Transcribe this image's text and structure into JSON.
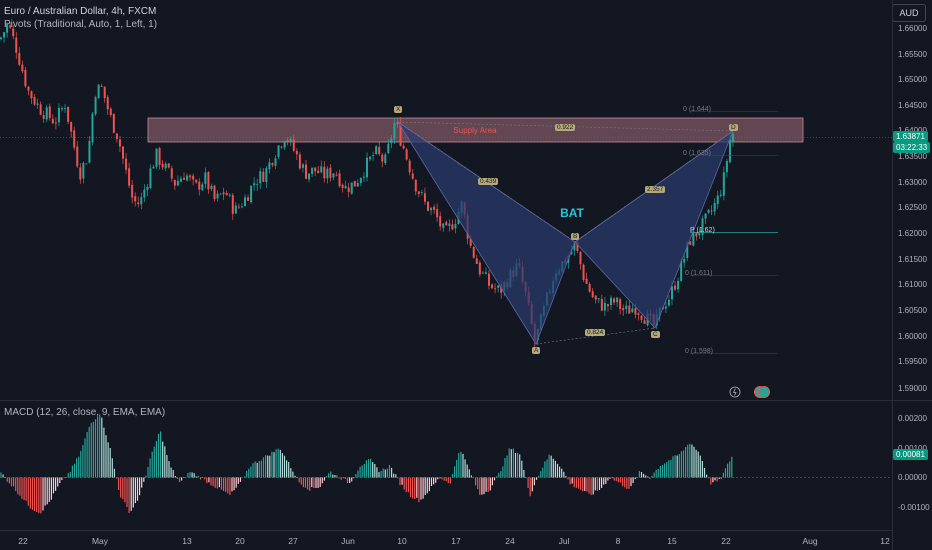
{
  "header": {
    "title": "Euro / Australian Dollar, 4h, FXCM",
    "indicator": "Pivots (Traditional, Auto, 1, Left, 1)",
    "currency_button": "AUD",
    "macd_title": "MACD (12, 26, close, 9, EMA, EMA)"
  },
  "price_axis": {
    "labels": [
      "1.66000",
      "1.65500",
      "1.65000",
      "1.64500",
      "1.64000",
      "1.63500",
      "1.63000",
      "1.62500",
      "1.62000",
      "1.61500",
      "1.61000",
      "1.60500",
      "1.60000",
      "1.59500",
      "1.59000"
    ],
    "current_price": "1.63871",
    "countdown": "03:22:33"
  },
  "macd_axis": {
    "labels": [
      "0.00200",
      "0.00100",
      "0.00000",
      "-0.00100"
    ],
    "current_value": "0.00081"
  },
  "time_axis": {
    "labels": [
      "22",
      "May",
      "13",
      "20",
      "27",
      "Jun",
      "10",
      "17",
      "24",
      "Jul",
      "8",
      "15",
      "22",
      "Aug",
      "12"
    ]
  },
  "pattern": {
    "name": "BAT",
    "zone_label": "Supply Area",
    "points": [
      {
        "label": "X",
        "price": 1.642
      },
      {
        "label": "A",
        "price": 1.599
      },
      {
        "label": "B",
        "price": 1.618
      },
      {
        "label": "C",
        "price": 1.602
      },
      {
        "label": "D",
        "price": 1.6397
      }
    ],
    "ratios": [
      "0.439",
      "2.357",
      "0.824",
      "0.922"
    ],
    "fib_levels": [
      "0 (1.644)",
      "P (1.62)",
      "0 (1.611)",
      "0 (1.598)",
      "0 (1.635)"
    ]
  },
  "colors": {
    "background": "#131722",
    "up": "#26a69a",
    "down": "#ef5350",
    "zone": "#a4707a",
    "pattern_fill": "#2a3a6e",
    "bat_text": "#26c6da"
  },
  "chart_data": {
    "type": "candlestick",
    "symbol": "EURAUD",
    "timeframe": "4h",
    "ylim": [
      1.5875,
      1.6625
    ],
    "supply_zone": [
      1.638,
      1.6425
    ],
    "path_points": [
      [
        0,
        1.658
      ],
      [
        8,
        1.661
      ],
      [
        16,
        1.6565
      ],
      [
        28,
        1.648
      ],
      [
        40,
        1.6445
      ],
      [
        55,
        1.642
      ],
      [
        65,
        1.6455
      ],
      [
        72,
        1.639
      ],
      [
        80,
        1.632
      ],
      [
        88,
        1.6355
      ],
      [
        95,
        1.648
      ],
      [
        102,
        1.6485
      ],
      [
        110,
        1.643
      ],
      [
        118,
        1.639
      ],
      [
        125,
        1.633
      ],
      [
        133,
        1.6265
      ],
      [
        140,
        1.626
      ],
      [
        148,
        1.631
      ],
      [
        156,
        1.6355
      ],
      [
        165,
        1.633
      ],
      [
        175,
        1.63
      ],
      [
        185,
        1.632
      ],
      [
        195,
        1.629
      ],
      [
        205,
        1.631
      ],
      [
        215,
        1.6265
      ],
      [
        225,
        1.6285
      ],
      [
        235,
        1.6245
      ],
      [
        245,
        1.627
      ],
      [
        255,
        1.6305
      ],
      [
        265,
        1.632
      ],
      [
        275,
        1.636
      ],
      [
        285,
        1.6395
      ],
      [
        295,
        1.636
      ],
      [
        305,
        1.632
      ],
      [
        315,
        1.6325
      ],
      [
        325,
        1.6315
      ],
      [
        335,
        1.6325
      ],
      [
        345,
        1.629
      ],
      [
        355,
        1.63
      ],
      [
        365,
        1.633
      ],
      [
        375,
        1.636
      ],
      [
        385,
        1.634
      ],
      [
        395,
        1.642
      ],
      [
        405,
        1.636
      ],
      [
        415,
        1.63
      ],
      [
        425,
        1.626
      ],
      [
        435,
        1.624
      ],
      [
        445,
        1.62
      ],
      [
        455,
        1.623
      ],
      [
        462,
        1.626
      ],
      [
        470,
        1.618
      ],
      [
        480,
        1.613
      ],
      [
        490,
        1.61
      ],
      [
        500,
        1.609
      ],
      [
        510,
        1.612
      ],
      [
        518,
        1.614
      ],
      [
        526,
        1.608
      ],
      [
        535,
        1.599
      ],
      [
        545,
        1.606
      ],
      [
        555,
        1.613
      ],
      [
        565,
        1.615
      ],
      [
        575,
        1.618
      ],
      [
        585,
        1.611
      ],
      [
        595,
        1.607
      ],
      [
        605,
        1.606
      ],
      [
        615,
        1.607
      ],
      [
        625,
        1.605
      ],
      [
        635,
        1.606
      ],
      [
        645,
        1.604
      ],
      [
        655,
        1.602
      ],
      [
        662,
        1.606
      ],
      [
        670,
        1.608
      ],
      [
        680,
        1.613
      ],
      [
        690,
        1.619
      ],
      [
        700,
        1.621
      ],
      [
        710,
        1.624
      ],
      [
        718,
        1.627
      ],
      [
        724,
        1.631
      ],
      [
        731,
        1.6397
      ]
    ],
    "macd_path": [
      [
        0,
        0.0002
      ],
      [
        10,
        -0.0002
      ],
      [
        20,
        -0.0006
      ],
      [
        30,
        -0.001
      ],
      [
        40,
        -0.0012
      ],
      [
        50,
        -0.0008
      ],
      [
        60,
        -0.0002
      ],
      [
        70,
        0.0002
      ],
      [
        80,
        0.0008
      ],
      [
        90,
        0.0018
      ],
      [
        100,
        0.0022
      ],
      [
        110,
        0.001
      ],
      [
        120,
        -0.0006
      ],
      [
        130,
        -0.0012
      ],
      [
        140,
        -0.0006
      ],
      [
        150,
        0.0006
      ],
      [
        160,
        0.0016
      ],
      [
        170,
        0.0004
      ],
      [
        180,
        -0.0002
      ],
      [
        190,
        0.0002
      ],
      [
        200,
        0.0
      ],
      [
        210,
        -0.0002
      ],
      [
        220,
        -0.0004
      ],
      [
        230,
        -0.0006
      ],
      [
        240,
        -0.0002
      ],
      [
        250,
        0.0004
      ],
      [
        260,
        0.0006
      ],
      [
        270,
        0.0008
      ],
      [
        280,
        0.001
      ],
      [
        290,
        0.0004
      ],
      [
        300,
        -0.0002
      ],
      [
        310,
        -0.0004
      ],
      [
        320,
        -0.0003
      ],
      [
        330,
        0.0002
      ],
      [
        340,
        0.0
      ],
      [
        350,
        -0.0002
      ],
      [
        360,
        0.0004
      ],
      [
        370,
        0.0006
      ],
      [
        380,
        0.0002
      ],
      [
        390,
        0.0004
      ],
      [
        400,
        -0.0002
      ],
      [
        410,
        -0.0006
      ],
      [
        420,
        -0.0008
      ],
      [
        430,
        -0.0004
      ],
      [
        440,
        0.0
      ],
      [
        450,
        -0.0002
      ],
      [
        460,
        0.001
      ],
      [
        470,
        0.0002
      ],
      [
        480,
        -0.0006
      ],
      [
        490,
        -0.0004
      ],
      [
        500,
        0.0002
      ],
      [
        510,
        0.001
      ],
      [
        520,
        0.0008
      ],
      [
        530,
        -0.0006
      ],
      [
        540,
        0.0002
      ],
      [
        550,
        0.0008
      ],
      [
        560,
        0.0004
      ],
      [
        570,
        -0.0002
      ],
      [
        580,
        -0.0004
      ],
      [
        590,
        -0.0006
      ],
      [
        600,
        -0.0004
      ],
      [
        610,
        0.0
      ],
      [
        620,
        -0.0002
      ],
      [
        630,
        -0.0004
      ],
      [
        640,
        0.0002
      ],
      [
        650,
        0.0
      ],
      [
        660,
        0.0004
      ],
      [
        670,
        0.0006
      ],
      [
        680,
        0.0008
      ],
      [
        690,
        0.0012
      ],
      [
        700,
        0.0008
      ],
      [
        710,
        -0.0002
      ],
      [
        720,
        -0.0001
      ],
      [
        733,
        0.0008
      ]
    ]
  }
}
